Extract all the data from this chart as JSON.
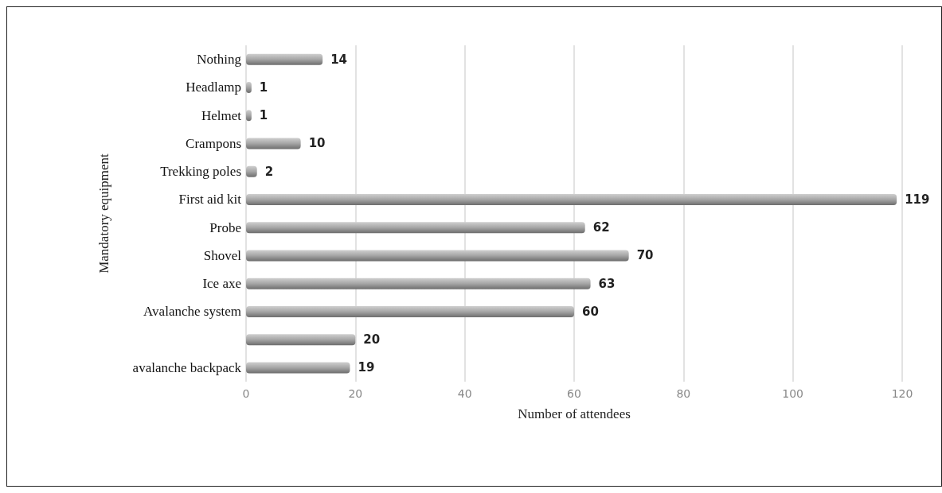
{
  "chart_data": {
    "type": "bar",
    "orientation": "horizontal",
    "xlabel": "Number of attendees",
    "ylabel": "Mandatory equipment",
    "categories": [
      "Nothing",
      "Headlamp",
      "Helmet",
      "Crampons",
      "Trekking poles",
      "First aid kit",
      "Probe",
      "Shovel",
      "Ice axe",
      "Avalanche system",
      null,
      "avalanche backpack"
    ],
    "values": [
      14,
      1,
      1,
      10,
      2,
      119,
      62,
      70,
      63,
      60,
      20,
      19
    ],
    "color": "#a6a6a6",
    "xlim": [
      0,
      120
    ],
    "xticks": [
      0,
      20,
      40,
      60,
      80,
      100,
      120
    ],
    "grid": "x",
    "data_labels": true
  }
}
